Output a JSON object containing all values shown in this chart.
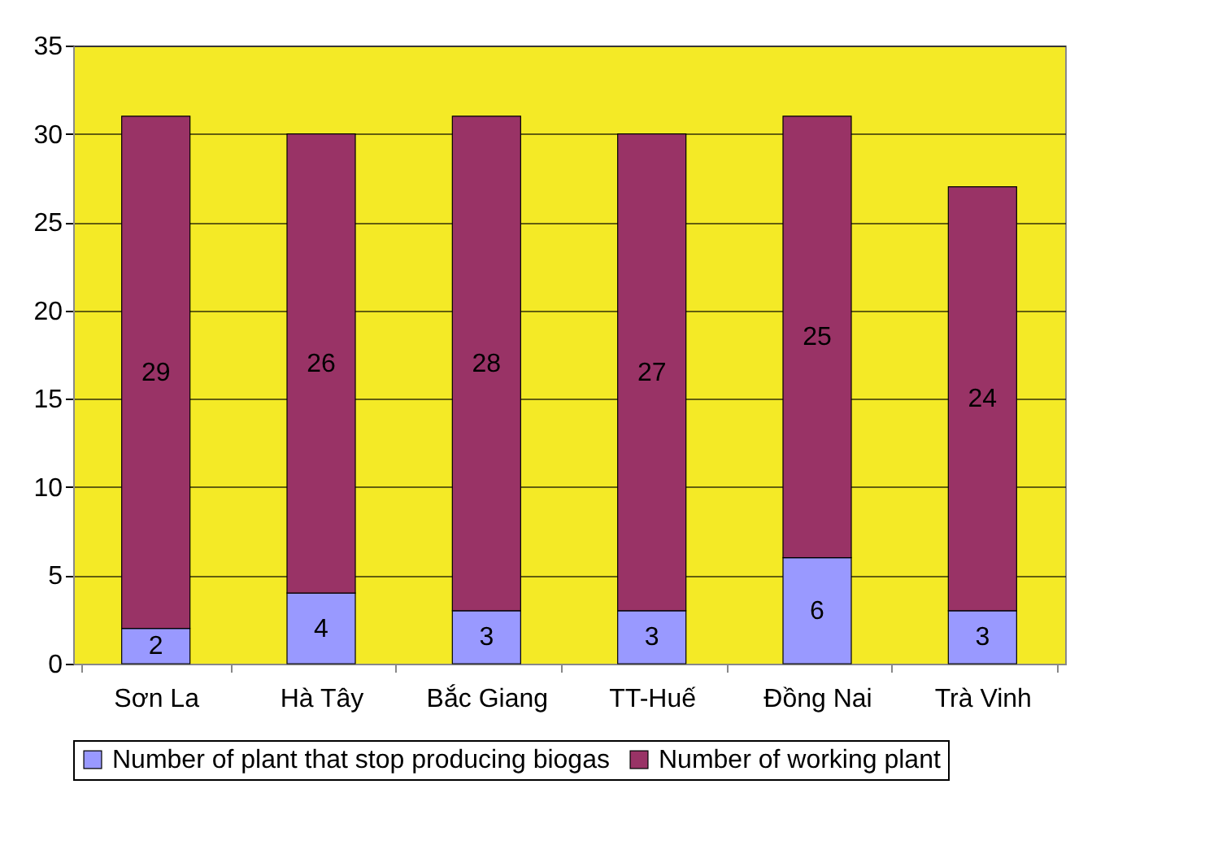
{
  "chart_data": {
    "type": "bar",
    "stacked": true,
    "categories": [
      "Sơn La",
      "Hà Tây",
      "Bắc Giang",
      "TT-Huế",
      "Đồng Nai",
      "Trà Vinh"
    ],
    "series": [
      {
        "name": "Number of plant that stop producing biogas",
        "color": "#9999ff",
        "values": [
          2,
          4,
          3,
          3,
          6,
          3
        ]
      },
      {
        "name": "Number of working plant",
        "color": "#993366",
        "values": [
          29,
          26,
          28,
          27,
          25,
          24
        ]
      }
    ],
    "ylim": [
      0,
      35
    ],
    "yticks": [
      0,
      5,
      10,
      15,
      20,
      25,
      30,
      35
    ],
    "grid": "y",
    "legend": "bottom",
    "data_labels": true
  }
}
